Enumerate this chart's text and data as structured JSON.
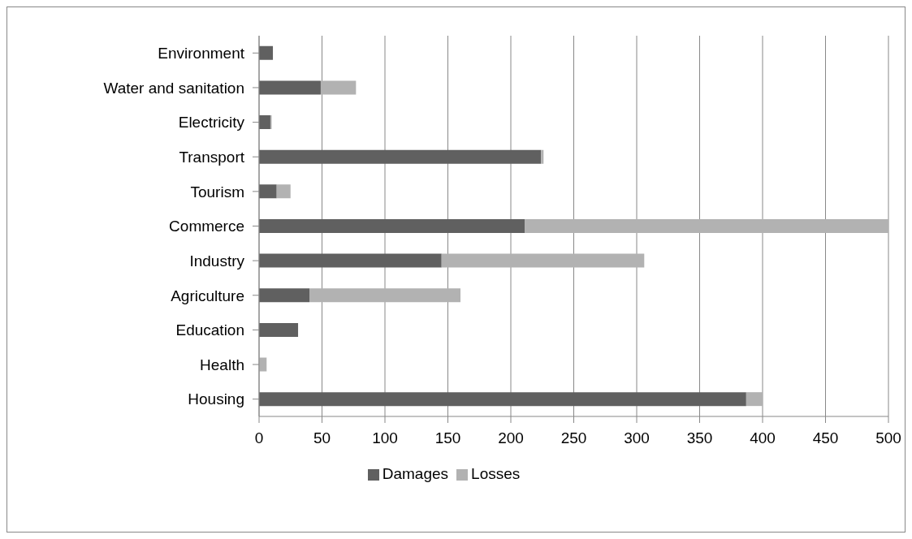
{
  "chart_data": {
    "type": "bar",
    "orientation": "horizontal",
    "stacked": true,
    "categories": [
      "Environment",
      "Water and sanitation",
      "Electricity",
      "Transport",
      "Tourism",
      "Commerce",
      "Industry",
      "Agriculture",
      "Education",
      "Health",
      "Housing"
    ],
    "series": [
      {
        "name": "Damages",
        "color": "#606060",
        "values": [
          11,
          49,
          9,
          224,
          14,
          211,
          145,
          40,
          31,
          null,
          387
        ]
      },
      {
        "name": "Losses",
        "color": "#b2b2b2",
        "values": [
          0,
          28,
          1,
          2,
          11,
          289,
          161,
          120,
          0,
          6,
          13
        ]
      }
    ],
    "xlim": [
      0,
      500
    ],
    "xticks": [
      0,
      50,
      100,
      150,
      200,
      250,
      300,
      350,
      400,
      450,
      500
    ],
    "grid": "x",
    "legend": "bottom"
  }
}
